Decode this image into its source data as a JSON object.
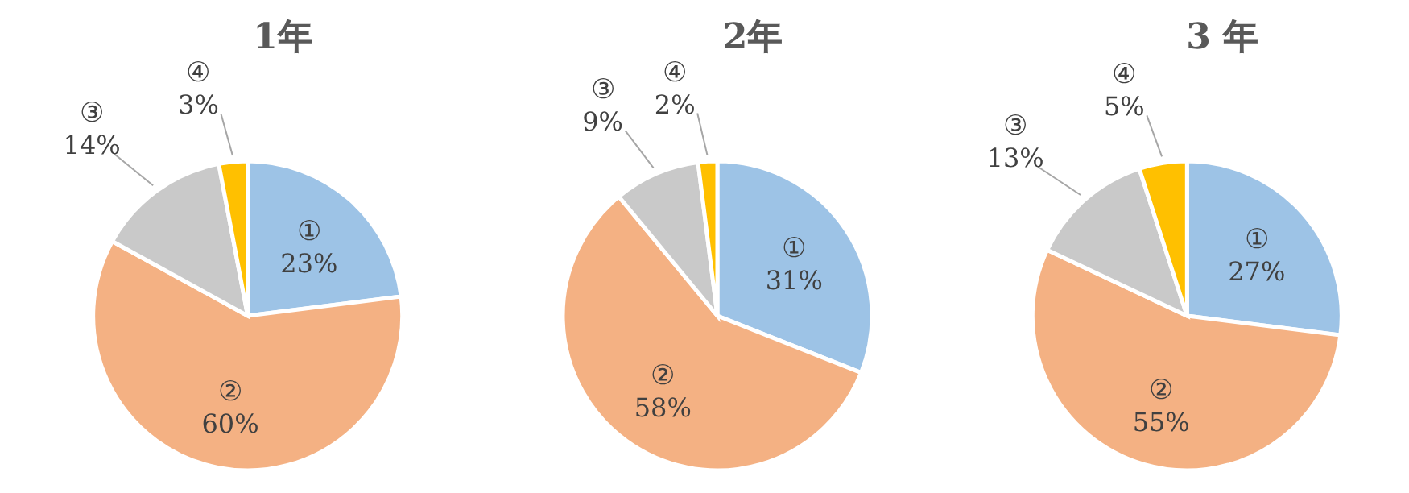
{
  "chart_data": [
    {
      "type": "pie",
      "title": "1年",
      "categories": [
        "①",
        "②",
        "③",
        "④"
      ],
      "values": [
        23,
        60,
        14,
        3
      ],
      "value_labels": [
        "23%",
        "60%",
        "14%",
        "3%"
      ],
      "colors": [
        "#9dc3e6",
        "#f4b183",
        "#c9c9c9",
        "#ffc000"
      ]
    },
    {
      "type": "pie",
      "title": "2年",
      "categories": [
        "①",
        "②",
        "③",
        "④"
      ],
      "values": [
        31,
        58,
        9,
        2
      ],
      "value_labels": [
        "31%",
        "58%",
        "9%",
        "2%"
      ],
      "colors": [
        "#9dc3e6",
        "#f4b183",
        "#c9c9c9",
        "#ffc000"
      ]
    },
    {
      "type": "pie",
      "title": "3 年",
      "categories": [
        "①",
        "②",
        "③",
        "④"
      ],
      "values": [
        27,
        55,
        13,
        5
      ],
      "value_labels": [
        "27%",
        "55%",
        "13%",
        "5%"
      ],
      "colors": [
        "#9dc3e6",
        "#f4b183",
        "#c9c9c9",
        "#ffc000"
      ]
    }
  ]
}
